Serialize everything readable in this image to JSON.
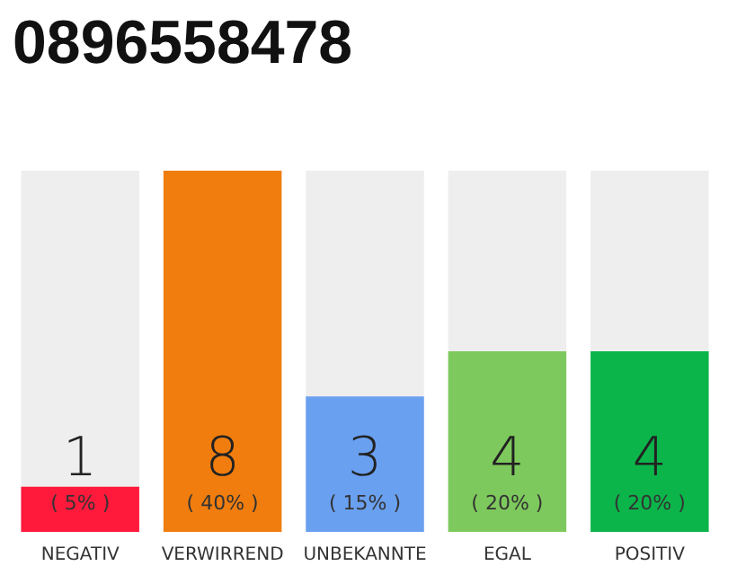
{
  "chart_data": {
    "type": "bar",
    "title": "0896558478",
    "categories": [
      "NEGATIV",
      "VERWIRREND",
      "UNBEKANNTE",
      "EGAL",
      "POSITIV"
    ],
    "values": [
      1,
      8,
      3,
      4,
      4
    ],
    "colors": [
      "#ff1a3c",
      "#f07d0e",
      "#6aa0f0",
      "#7ec95d",
      "#0bb54a"
    ],
    "value_labels": [
      "1\n( 5% )",
      "8\n( 40% )",
      "3\n( 15% )",
      "4\n( 20% )",
      "4\n( 20% )"
    ],
    "ylim": [
      0,
      8
    ],
    "tick_labels": "x"
  }
}
